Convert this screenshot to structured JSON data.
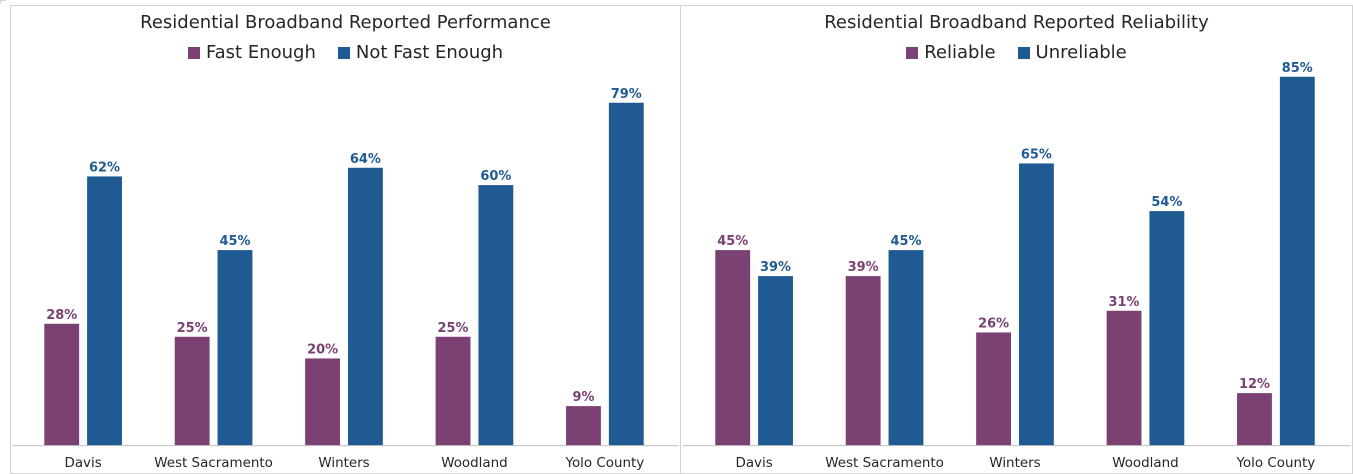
{
  "chart_data": [
    {
      "type": "bar",
      "title": "Residential Broadband Reported Performance",
      "categories": [
        "Davis",
        "West Sacramento",
        "Winters",
        "Woodland",
        "Yolo County"
      ],
      "series": [
        {
          "name": "Fast Enough",
          "values": [
            28,
            25,
            20,
            25,
            9
          ],
          "labels": [
            "28%",
            "25%",
            "20%",
            "25%",
            "9%"
          ],
          "color": "#7a4172"
        },
        {
          "name": "Not Fast Enough",
          "values": [
            62,
            45,
            64,
            60,
            79
          ],
          "labels": [
            "62%",
            "45%",
            "64%",
            "60%",
            "79%"
          ],
          "color": "#1f5a93"
        }
      ],
      "ylim": [
        0,
        88
      ],
      "grid": false,
      "legend": "top-center"
    },
    {
      "type": "bar",
      "title": "Residential Broadband Reported Reliability",
      "categories": [
        "Davis",
        "West Sacramento",
        "Winters",
        "Woodland",
        "Yolo County"
      ],
      "series": [
        {
          "name": "Reliable",
          "values": [
            45,
            39,
            26,
            31,
            12
          ],
          "labels": [
            "45%",
            "39%",
            "26%",
            "31%",
            "12%"
          ],
          "color": "#7a4172"
        },
        {
          "name": "Unreliable",
          "values": [
            39,
            45,
            65,
            54,
            85
          ],
          "labels": [
            "39%",
            "45%",
            "65%",
            "54%",
            "85%"
          ],
          "color": "#1f5a93"
        }
      ],
      "ylim": [
        0,
        88
      ],
      "grid": false,
      "legend": "top-center"
    }
  ]
}
